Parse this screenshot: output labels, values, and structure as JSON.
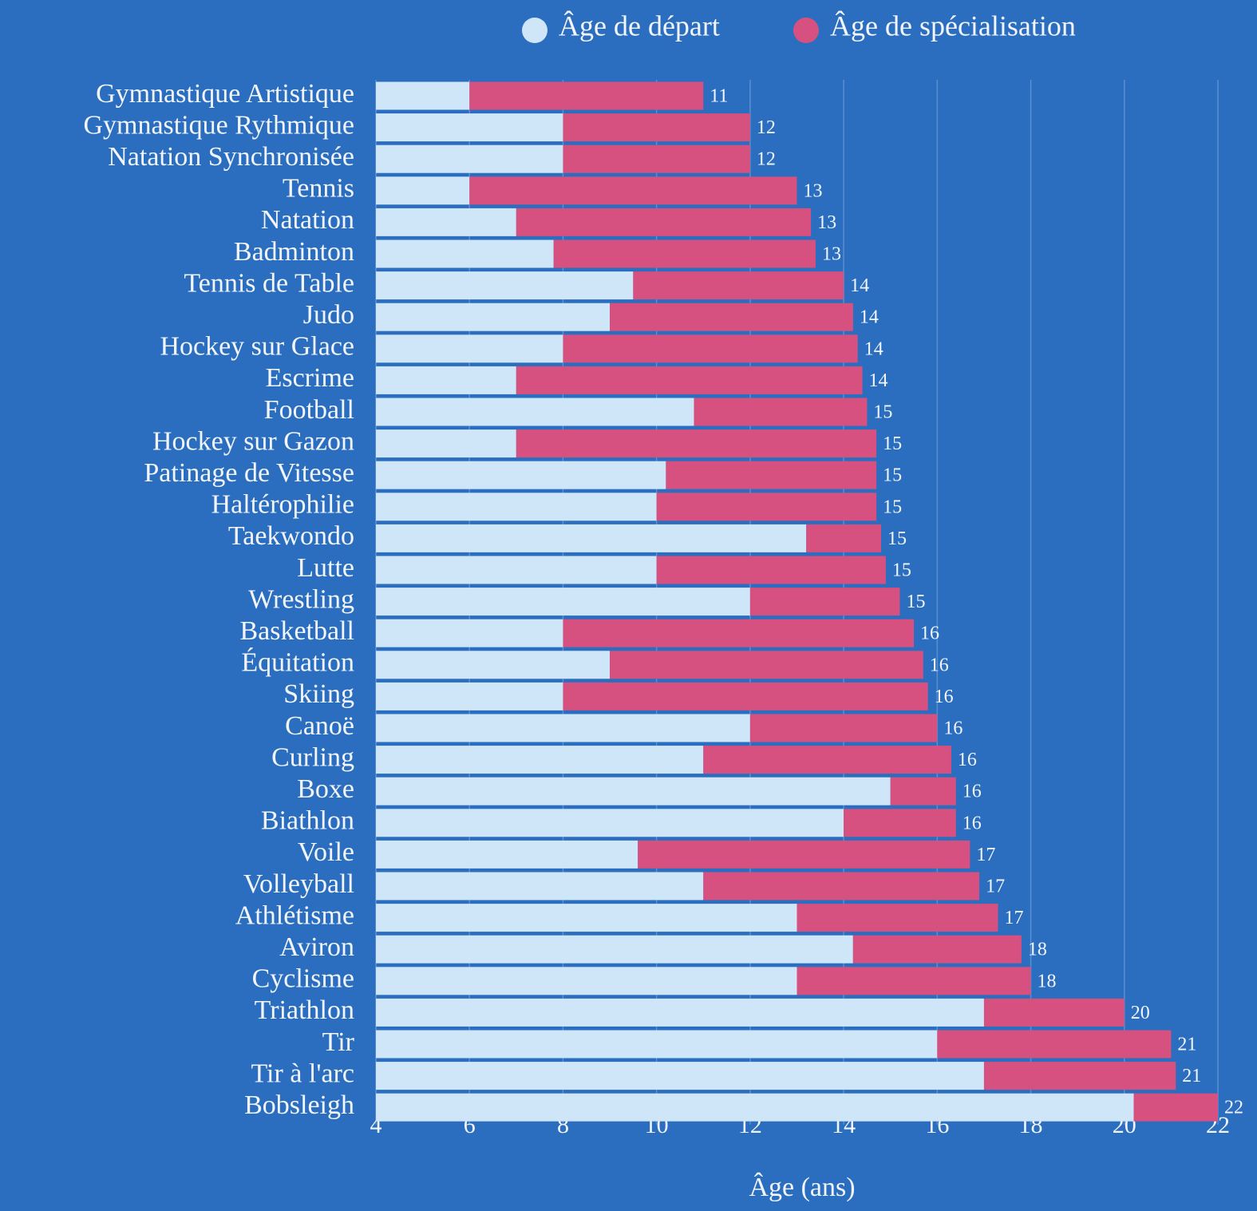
{
  "chart_data": {
    "type": "bar",
    "orientation": "horizontal",
    "categories": [
      "Gymnastique Artistique",
      "Gymnastique Rythmique",
      "Natation Synchronisée",
      "Tennis",
      "Natation",
      "Badminton",
      "Tennis de Table",
      "Judo",
      "Hockey sur Glace",
      "Escrime",
      "Football",
      "Hockey sur Gazon",
      "Patinage de Vitesse",
      "Haltérophilie",
      "Taekwondo",
      "Lutte",
      "Wrestling",
      "Basketball",
      "Équitation",
      "Skiing",
      "Canoë",
      "Curling",
      "Boxe",
      "Biathlon",
      "Voile",
      "Volleyball",
      "Athlétisme",
      "Aviron",
      "Cyclisme",
      "Triathlon",
      "Tir",
      "Tir à l'arc",
      "Bobsleigh"
    ],
    "series": [
      {
        "name": "Âge de départ",
        "color": "#cfe5f8",
        "values": [
          6,
          8,
          8,
          6,
          7,
          7.8,
          9.5,
          9,
          8,
          7,
          10.8,
          7,
          10.2,
          10,
          13.2,
          10,
          12,
          8,
          9,
          8,
          12,
          11,
          15,
          14,
          9.6,
          11,
          13,
          14.2,
          13,
          17,
          16,
          17,
          20.2
        ]
      },
      {
        "name": "Âge de spécialisation",
        "color": "#d6517f",
        "values": [
          11,
          12,
          12,
          13,
          13.3,
          13.4,
          14,
          14.2,
          14.3,
          14.4,
          14.5,
          14.7,
          14.7,
          14.7,
          14.8,
          14.9,
          15.2,
          15.5,
          15.7,
          15.8,
          16,
          16.3,
          16.4,
          16.4,
          16.7,
          16.9,
          17.3,
          17.8,
          18,
          20,
          21,
          21.1,
          22
        ],
        "value_labels": [
          "11",
          "12",
          "12",
          "13",
          "13",
          "13",
          "14",
          "14",
          "14",
          "14",
          "15",
          "15",
          "15",
          "15",
          "15",
          "15",
          "15",
          "16",
          "16",
          "16",
          "16",
          "16",
          "16",
          "16",
          "17",
          "17",
          "17",
          "18",
          "18",
          "20",
          "21",
          "21",
          "22"
        ]
      }
    ],
    "xlim": [
      4,
      22
    ],
    "xticks": [
      4,
      6,
      8,
      10,
      12,
      14,
      16,
      18,
      20,
      22
    ],
    "x_label": "Âge (ans)",
    "grid": true,
    "legend": "top"
  }
}
